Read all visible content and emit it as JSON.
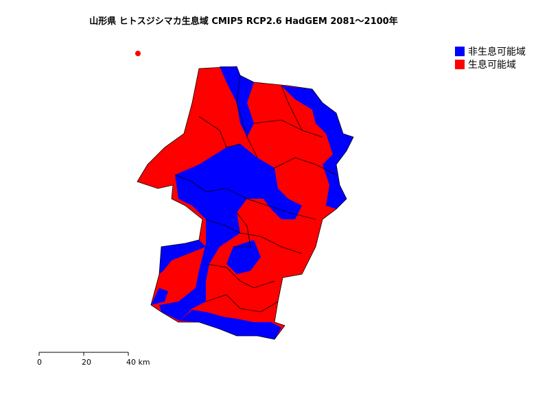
{
  "header": {
    "title": "山形県 ヒトスジシマカ生息域 CMIP5 RCP2.6 HadGEM 2081～2100年"
  },
  "legend": {
    "items": [
      {
        "label": "非生息可能域",
        "color": "#0000ff"
      },
      {
        "label": "生息可能域",
        "color": "#ff0000"
      }
    ]
  },
  "scale_bar": {
    "labels": [
      "0",
      "20",
      "40 km"
    ]
  }
}
